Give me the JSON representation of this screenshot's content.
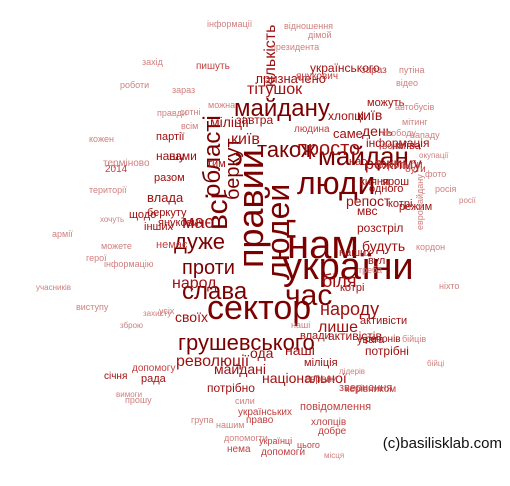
{
  "words": [
    {
      "text": "нам"
    },
    {
      "text": "україни"
    },
    {
      "text": "сектор"
    },
    {
      "text": "правий"
    },
    {
      "text": "людей"
    },
    {
      "text": "люди"
    },
    {
      "text": "майдан"
    },
    {
      "text": "також"
    },
    {
      "text": "всі"
    },
    {
      "text": "беркут"
    },
    {
      "text": "області"
    },
    {
      "text": "час"
    },
    {
      "text": "слава"
    },
    {
      "text": "дуже"
    },
    {
      "text": "проти"
    },
    {
      "text": "грушевського"
    },
    {
      "text": "майдану"
    },
    {
      "text": "просто"
    },
    {
      "text": "біля"
    },
    {
      "text": "народу"
    },
    {
      "text": "має"
    },
    {
      "text": "лише"
    },
    {
      "text": "народ"
    },
    {
      "text": "революції"
    },
    {
      "text": "київ"
    },
    {
      "text": "режиму"
    },
    {
      "text": "наші"
    },
    {
      "text": "майдані"
    },
    {
      "text": "своїх"
    },
    {
      "text": "національної"
    },
    {
      "text": "ода"
    },
    {
      "text": "кількість"
    },
    {
      "text": "тітушок"
    },
    {
      "text": "призначено"
    },
    {
      "text": "українського"
    },
    {
      "text": "день"
    },
    {
      "text": "київ"
    },
    {
      "text": "хлопці"
    },
    {
      "text": "будуть"
    },
    {
      "text": "розстріл"
    },
    {
      "text": "репост"
    },
    {
      "text": "активісти"
    },
    {
      "text": "активістів"
    },
    {
      "text": "мвс"
    },
    {
      "text": "потрібні"
    },
    {
      "text": "міліції"
    },
    {
      "text": "потрібно"
    },
    {
      "text": "кияни"
    },
    {
      "text": "влада"
    },
    {
      "text": "січня"
    },
    {
      "text": "саме"
    },
    {
      "text": "завтра"
    },
    {
      "text": "вами"
    },
    {
      "text": "партії"
    },
    {
      "text": "інформація"
    },
    {
      "text": "київа"
    },
    {
      "text": "янукович"
    },
    {
      "text": "нашу"
    },
    {
      "text": "разом"
    },
    {
      "text": "беркуту"
    },
    {
      "text": "щодо"
    },
    {
      "text": "інших"
    },
    {
      "text": "тим"
    },
    {
      "text": "влади"
    },
    {
      "text": "міліція"
    },
    {
      "text": "увага"
    },
    {
      "text": "регіонів"
    },
    {
      "text": "наших"
    },
    {
      "text": "рада"
    },
    {
      "text": "режим"
    },
    {
      "text": "котрі"
    },
    {
      "text": "вул"
    },
    {
      "text": "одного"
    },
    {
      "text": "котрі"
    },
    {
      "text": "ярош"
    },
    {
      "text": "нас"
    },
    {
      "text": "можуть"
    },
    {
      "text": "пишуть"
    },
    {
      "text": "янукович"
    },
    {
      "text": "зараз"
    },
    {
      "text": "людина"
    },
    {
      "text": "українських"
    },
    {
      "text": "боротьби"
    },
    {
      "text": "вони"
    },
    {
      "text": "бути"
    },
    {
      "text": "повідомлення"
    },
    {
      "text": "звернення"
    },
    {
      "text": "хлопців"
    },
    {
      "text": "право"
    },
    {
      "text": "українці"
    },
    {
      "text": "допомогу"
    },
    {
      "text": "нема"
    },
    {
      "text": "допомоги"
    },
    {
      "text": "європи"
    },
    {
      "text": "керівником"
    },
    {
      "text": "добре"
    },
    {
      "text": "2014"
    },
    {
      "text": "немає"
    },
    {
      "text": "цього"
    },
    {
      "text": "інформації"
    },
    {
      "text": "відношення"
    },
    {
      "text": "президента"
    },
    {
      "text": "дімой"
    },
    {
      "text": "путіна"
    },
    {
      "text": "роботи"
    },
    {
      "text": "можна"
    },
    {
      "text": "правди"
    },
    {
      "text": "мітинг"
    },
    {
      "text": "автобусів"
    },
    {
      "text": "нападу"
    },
    {
      "text": "фото"
    },
    {
      "text": "відео"
    },
    {
      "text": "терміново"
    },
    {
      "text": "армії"
    },
    {
      "text": "учасників"
    },
    {
      "text": "кордон"
    },
    {
      "text": "виступу"
    },
    {
      "text": "евромайдану"
    },
    {
      "text": "росія"
    },
    {
      "text": "росії"
    },
    {
      "text": "ніхто"
    },
    {
      "text": "можете"
    },
    {
      "text": "свободу"
    },
    {
      "text": "захід"
    },
    {
      "text": "герої"
    },
    {
      "text": "група"
    },
    {
      "text": "допомогти"
    },
    {
      "text": "нашим"
    },
    {
      "text": "вимоги"
    },
    {
      "text": "бійців"
    },
    {
      "text": "території"
    },
    {
      "text": "кожен"
    },
    {
      "text": "бійці"
    },
    {
      "text": "всім"
    },
    {
      "text": "окупації"
    },
    {
      "text": "сотні"
    },
    {
      "text": "інформацію"
    },
    {
      "text": "місця"
    },
    {
      "text": "зброю"
    },
    {
      "text": "сили"
    },
    {
      "text": "хочуть"
    },
    {
      "text": "захисту"
    },
    {
      "text": "усіх"
    },
    {
      "text": "наші"
    },
    {
      "text": "треба"
    },
    {
      "text": "зараз"
    },
    {
      "text": "прошу"
    },
    {
      "text": "лідерів"
    }
  ],
  "watermark": "(c)basilisklab.com"
}
